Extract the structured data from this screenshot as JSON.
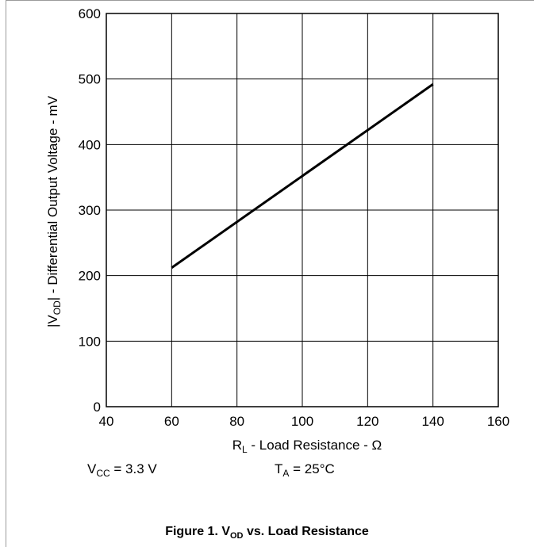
{
  "chart_data": {
    "type": "line",
    "title": "",
    "xlabel": {
      "main": "R",
      "sub": "L",
      "rest": " - Load Resistance  - Ω"
    },
    "ylabel": {
      "pre": "|V",
      "sub": "OD",
      "rest": "| - Differential Output Voltage - mV"
    },
    "xlim": [
      40,
      160
    ],
    "ylim": [
      0,
      600
    ],
    "xticks": [
      40,
      60,
      80,
      100,
      120,
      140,
      160
    ],
    "yticks": [
      0,
      100,
      200,
      300,
      400,
      500,
      600
    ],
    "grid": true,
    "series": [
      {
        "x": [
          60,
          140
        ],
        "y": [
          212,
          492
        ],
        "color": "#000000"
      }
    ]
  },
  "conditions": {
    "vcc": {
      "main": "V",
      "sub": "CC",
      "rest": " = 3.3 V"
    },
    "ta": {
      "main": "T",
      "sub": "A",
      "rest": " = 25°C"
    }
  },
  "caption": {
    "pre": "Figure 1. V",
    "sub": "OD",
    "rest": " vs. Load Resistance"
  }
}
